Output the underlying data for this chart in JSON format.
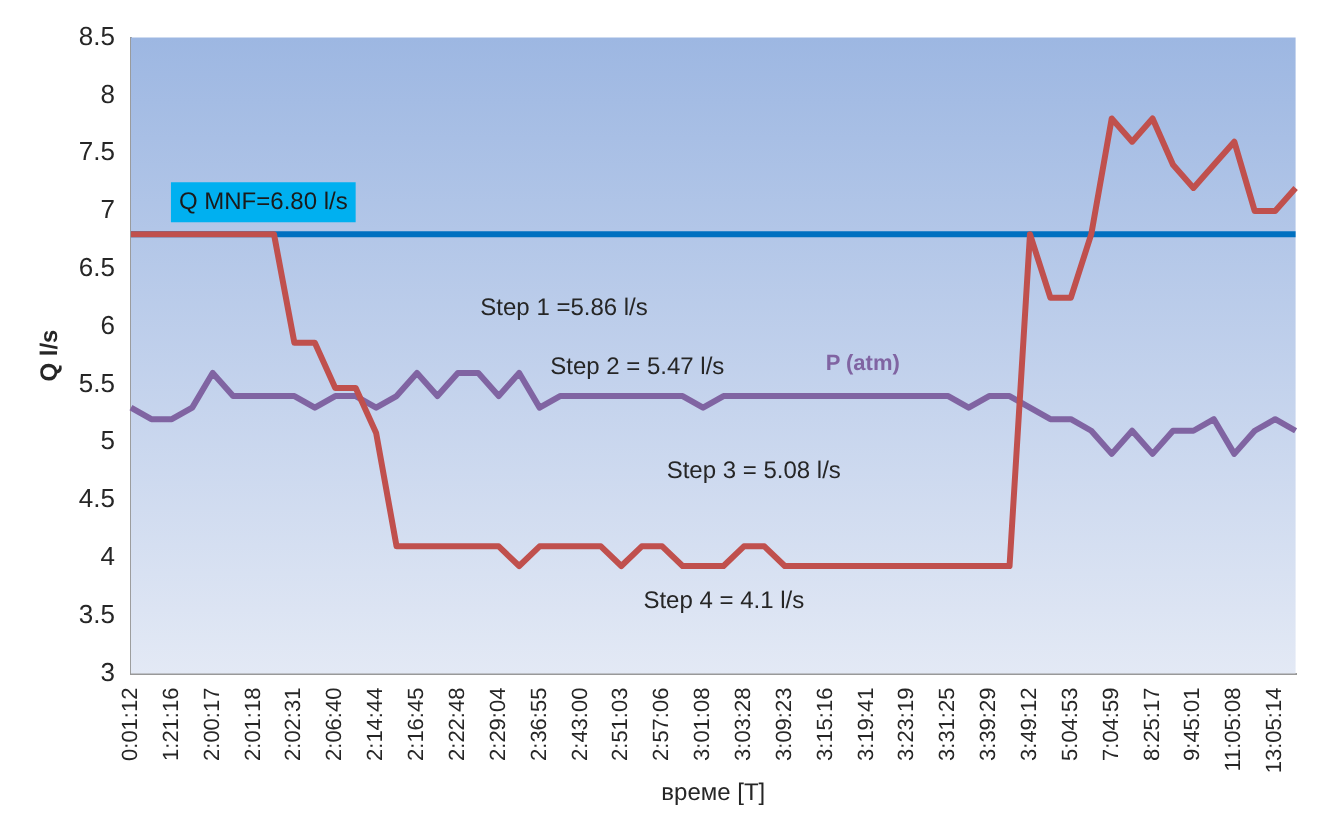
{
  "chart_data": {
    "type": "line",
    "xlabel": "време [T]",
    "ylabel": "Q l/s",
    "categories": [
      "0:01:12",
      null,
      "1:21:16",
      null,
      "2:00:17",
      null,
      "2:01:18",
      null,
      "2:02:31",
      null,
      "2:06:40",
      null,
      "2:14:44",
      null,
      "2:16:45",
      null,
      "2:22:48",
      null,
      "2:29:04",
      null,
      "2:36:55",
      null,
      "2:43:00",
      null,
      "2:51:03",
      null,
      "2:57:06",
      null,
      "3:01:08",
      null,
      "3:03:28",
      null,
      "3:09:23",
      null,
      "3:15:16",
      null,
      "3:19:41",
      null,
      "3:23:19",
      null,
      "3:31:25",
      null,
      "3:39:29",
      null,
      "3:49:12",
      null,
      "5:04:53",
      null,
      "7:04:59",
      null,
      "8:25:17",
      null,
      "9:45:01",
      null,
      "11:05:08",
      null,
      "13:05:14",
      null
    ],
    "series": [
      {
        "color": "#c0504d",
        "values": [
          6.8,
          6.8,
          6.8,
          6.8,
          6.8,
          6.8,
          6.8,
          6.8,
          5.86,
          5.86,
          5.47,
          5.47,
          5.08,
          4.1,
          4.1,
          4.1,
          4.1,
          4.1,
          4.1,
          3.93,
          4.1,
          4.1,
          4.1,
          4.1,
          3.93,
          4.1,
          4.1,
          3.93,
          3.93,
          3.93,
          4.1,
          4.1,
          3.93,
          3.93,
          3.93,
          3.93,
          3.93,
          3.93,
          3.93,
          3.93,
          3.93,
          3.93,
          3.93,
          3.93,
          6.8,
          6.25,
          6.25,
          6.8,
          7.8,
          7.6,
          7.8,
          7.4,
          7.2,
          7.4,
          7.6,
          7.0,
          7.0,
          7.2
        ]
      },
      {
        "name": "P (atm)",
        "color": "#8064a2",
        "values": [
          5.3,
          5.2,
          5.2,
          5.3,
          5.6,
          5.4,
          5.4,
          5.4,
          5.4,
          5.3,
          5.4,
          5.4,
          5.3,
          5.4,
          5.6,
          5.4,
          5.6,
          5.6,
          5.4,
          5.6,
          5.3,
          5.4,
          5.4,
          5.4,
          5.4,
          5.4,
          5.4,
          5.4,
          5.3,
          5.4,
          5.4,
          5.4,
          5.4,
          5.4,
          5.4,
          5.4,
          5.4,
          5.4,
          5.4,
          5.4,
          5.4,
          5.3,
          5.4,
          5.4,
          5.3,
          5.2,
          5.2,
          5.1,
          4.9,
          5.1,
          4.9,
          5.1,
          5.1,
          5.2,
          4.9,
          5.1,
          5.2,
          5.1
        ]
      }
    ],
    "ylim": [
      3,
      8.5
    ],
    "yticks": [
      3,
      3.5,
      4,
      4.5,
      5,
      5.5,
      6,
      6.5,
      7,
      7.5,
      8,
      8.5
    ],
    "ref_lines": [
      {
        "axis": "y",
        "value": 6.8,
        "label": "Q MNF=6.80 l/s",
        "color": "#0070c0"
      }
    ],
    "annotations": [
      "Step 1 =5.86 l/s",
      "Step 2 = 5.47 l/s",
      "Step 3 = 5.08 l/s",
      "Step 4 = 4.1 l/s"
    ],
    "grid": false,
    "legend": false,
    "marker": "none",
    "line_style": "solid"
  }
}
